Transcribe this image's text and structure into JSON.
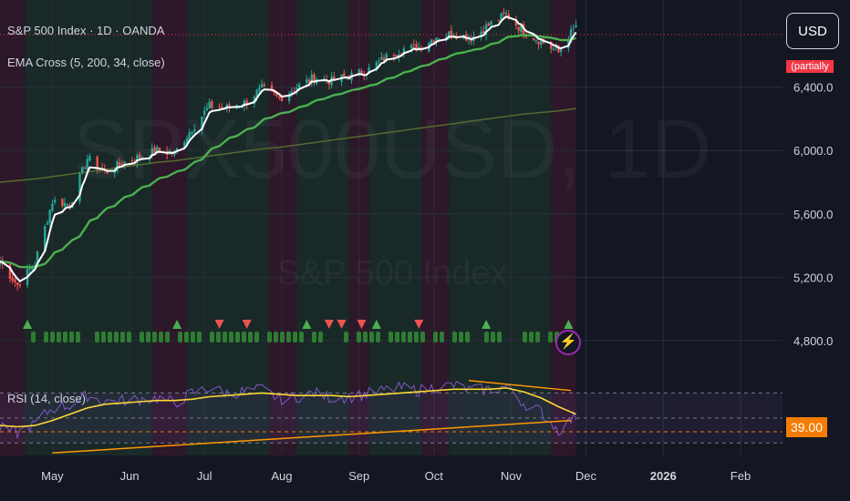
{
  "header": {
    "symbol_title": "S&P 500 Index · 1D · OANDA",
    "ema_legend": "EMA Cross (5, 200, 34, close)",
    "rsi_legend": "RSI (14, close)",
    "currency_button": "USD",
    "current_price_badge": "(partially hidden)",
    "rsi_value_badge": "39.00"
  },
  "watermark": {
    "ticker": "SPX500USD, 1D",
    "name": "S&P 500 Index"
  },
  "icons": {
    "alert": "lightning-bolt-icon"
  },
  "colors": {
    "background": "#131722",
    "up_candle": "#26a69a",
    "down_candle": "#ef5350",
    "ema_fast": "#ffffff",
    "ema_34_up": "#4caf50",
    "ema_34_down": "#e91e63",
    "ema_200": "#556b2f",
    "rsi_line": "#7e57c2",
    "rsi_ma": "#fdd835",
    "trendline": "#ff9800",
    "green_band": "rgba(76,175,80,0.12)",
    "red_band": "rgba(233,30,99,0.12)",
    "rsi_zone": "rgba(126,87,194,0.10)"
  },
  "chart_data": {
    "type": "line",
    "title": "S&P 500 Index · 1D · OANDA",
    "x_axis": {
      "ticks": [
        "May",
        "Jun",
        "Jul",
        "Aug",
        "Sep",
        "Oct",
        "Nov",
        "Dec",
        "2026",
        "Feb"
      ],
      "bold_ticks": [
        "2026"
      ]
    },
    "price_axis": {
      "ticks": [
        6400,
        6000,
        5600,
        5200,
        4800
      ],
      "tick_labels": [
        "6,400.0",
        "6,000.0",
        "5,600.0",
        "5,200.0",
        "4,800.0"
      ],
      "range": [
        4650,
        6950
      ]
    },
    "rsi_axis": {
      "range": [
        20,
        90
      ],
      "bands": [
        70,
        50,
        30
      ],
      "highlight": 39.0
    },
    "start_date": "2025-04-10",
    "weekly_dates": [
      "2025-04-10",
      "2025-04-17",
      "2025-04-24",
      "2025-05-01",
      "2025-05-08",
      "2025-05-15",
      "2025-05-22",
      "2025-05-29",
      "2025-06-05",
      "2025-06-12",
      "2025-06-19",
      "2025-06-26",
      "2025-07-03",
      "2025-07-10",
      "2025-07-17",
      "2025-07-24",
      "2025-07-31",
      "2025-08-07",
      "2025-08-14",
      "2025-08-21",
      "2025-08-28",
      "2025-09-04",
      "2025-09-11",
      "2025-09-18",
      "2025-09-25",
      "2025-10-02",
      "2025-10-09",
      "2025-10-16",
      "2025-10-23",
      "2025-10-30",
      "2025-11-06",
      "2025-11-13",
      "2025-11-20",
      "2025-11-27"
    ],
    "close": [
      5300,
      5150,
      5290,
      5680,
      5660,
      5950,
      5860,
      5920,
      5960,
      6000,
      5980,
      6140,
      6280,
      6270,
      6300,
      6390,
      6330,
      6400,
      6460,
      6440,
      6470,
      6500,
      6580,
      6640,
      6650,
      6720,
      6740,
      6710,
      6790,
      6860,
      6750,
      6690,
      6620,
      6790
    ],
    "ema200": [
      5800,
      5810,
      5820,
      5835,
      5850,
      5865,
      5880,
      5895,
      5910,
      5925,
      5935,
      5950,
      5965,
      5980,
      5995,
      6010,
      6020,
      6035,
      6050,
      6065,
      6080,
      6095,
      6110,
      6125,
      6140,
      6155,
      6170,
      6185,
      6200,
      6215,
      6230,
      6240,
      6250,
      6265
    ],
    "rsi": [
      42,
      38,
      45,
      58,
      60,
      68,
      63,
      64,
      65,
      66,
      62,
      70,
      74,
      70,
      71,
      73,
      65,
      67,
      70,
      66,
      67,
      69,
      72,
      74,
      72,
      75,
      76,
      72,
      73,
      75,
      62,
      55,
      40,
      52
    ],
    "rsi_ma": [
      44,
      43,
      44,
      48,
      53,
      58,
      61,
      62,
      63,
      64,
      64,
      65,
      67,
      68,
      69,
      70,
      69,
      68,
      68,
      68,
      67,
      68,
      69,
      70,
      71,
      72,
      73,
      73,
      73,
      74,
      71,
      66,
      59,
      53
    ],
    "signals": [
      {
        "date": "2025-04-21",
        "dir": "up"
      },
      {
        "date": "2025-06-20",
        "dir": "up"
      },
      {
        "date": "2025-07-07",
        "dir": "down"
      },
      {
        "date": "2025-07-18",
        "dir": "down"
      },
      {
        "date": "2025-08-11",
        "dir": "up"
      },
      {
        "date": "2025-08-20",
        "dir": "down"
      },
      {
        "date": "2025-08-25",
        "dir": "down"
      },
      {
        "date": "2025-09-02",
        "dir": "down"
      },
      {
        "date": "2025-09-08",
        "dir": "up"
      },
      {
        "date": "2025-09-25",
        "dir": "down"
      },
      {
        "date": "2025-10-22",
        "dir": "up"
      },
      {
        "date": "2025-11-24",
        "dir": "up"
      }
    ]
  }
}
